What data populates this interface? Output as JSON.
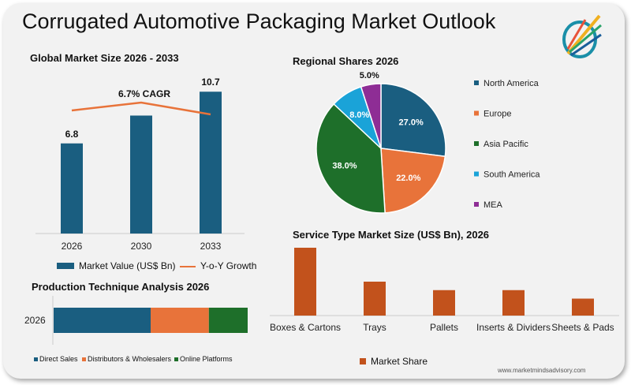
{
  "title": "Corrugated Automotive Packaging Market Outlook",
  "website": "www.marketmindsadvisory.com",
  "colors": {
    "blue": "#1a5e80",
    "orange": "#e8733a",
    "green": "#1e6f2a",
    "light_blue": "#1aa3d8",
    "purple": "#8e2d95",
    "rust": "#c2521c"
  },
  "chart_data": [
    {
      "type": "bar",
      "title": "Global Market Size 2026 - 2033",
      "categories": [
        "2026",
        "2030",
        "2033"
      ],
      "series": [
        {
          "name": "Market Value (US$ Bn)",
          "values": [
            6.8,
            8.9,
            10.7
          ],
          "data_labels": [
            "6.8",
            "",
            "10.7"
          ]
        },
        {
          "name": "Y-o-Y Growth",
          "type": "line",
          "values": [
            6.5,
            6.9,
            6.3
          ]
        }
      ],
      "annotation": "6.7% CAGR"
    },
    {
      "type": "pie",
      "title": "Regional Shares 2026",
      "labels": [
        "North America",
        "Europe",
        "Asia Pacific",
        "South America",
        "MEA"
      ],
      "values": [
        27.0,
        22.0,
        38.0,
        8.0,
        5.0
      ],
      "data_labels": [
        "27.0%",
        "22.0%",
        "38.0%",
        "8.0%",
        "5.0%"
      ],
      "legend": "right"
    },
    {
      "type": "bar",
      "title": "Service Type Market Size (US$ Bn), 2026",
      "categories": [
        "Boxes & Cartons",
        "Trays",
        "Pallets",
        "Inserts & Dividers",
        "Sheets & Pads"
      ],
      "series": [
        {
          "name": "Market Share",
          "values": [
            40,
            20,
            15,
            15,
            10
          ]
        }
      ],
      "legend": "bottom"
    },
    {
      "type": "bar",
      "orientation": "horizontal",
      "stacked": true,
      "title": "Production Technique Analysis 2026",
      "categories": [
        "2026"
      ],
      "series": [
        {
          "name": "Direct Sales",
          "values": [
            50
          ]
        },
        {
          "name": "Distributors & Wholesalers",
          "values": [
            30
          ]
        },
        {
          "name": "Online Platforms",
          "values": [
            20
          ]
        }
      ],
      "legend": "bottom"
    }
  ]
}
